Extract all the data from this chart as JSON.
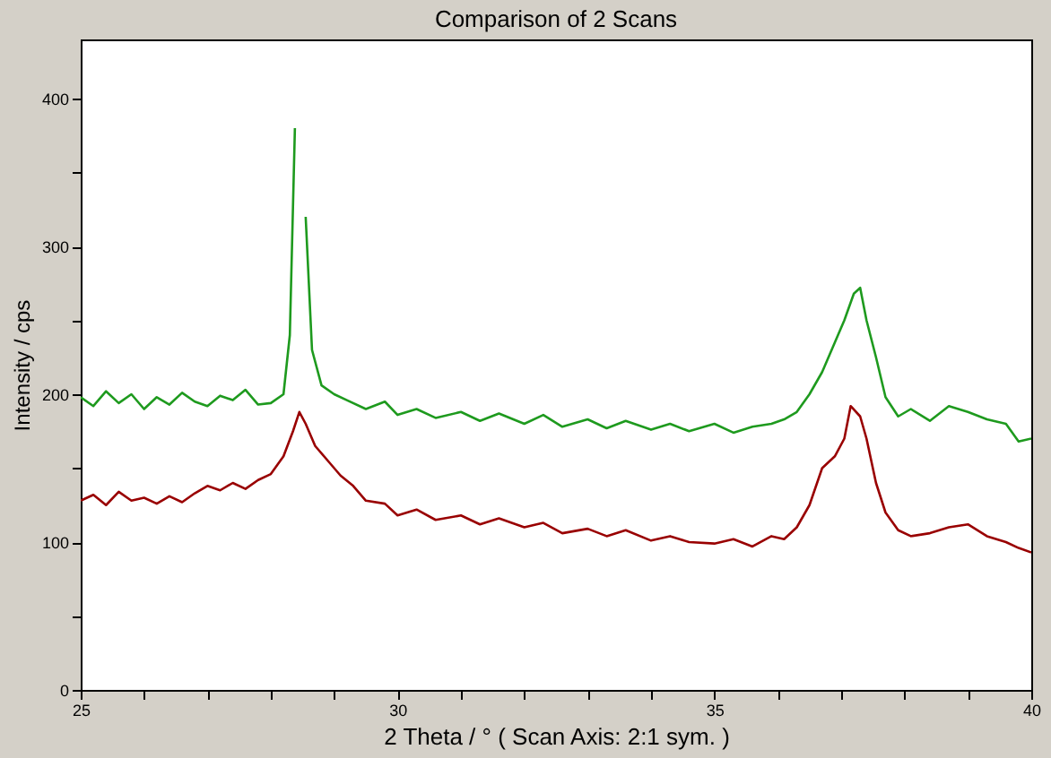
{
  "chart_data": {
    "type": "line",
    "title": "Comparison of 2 Scans",
    "xlabel": "2 Theta / °   ( Scan Axis: 2:1 sym. )",
    "ylabel": "Intensity / cps",
    "xlim": [
      25,
      40
    ],
    "ylim": [
      0,
      440
    ],
    "xticks": [
      25,
      {
        "value": 26,
        "label": null
      },
      {
        "value": 27,
        "label": null
      },
      {
        "value": 28,
        "label": null
      },
      {
        "value": 29,
        "label": null
      },
      30,
      {
        "value": 31,
        "label": null
      },
      {
        "value": 32,
        "label": null
      },
      {
        "value": 33,
        "label": null
      },
      {
        "value": 34,
        "label": null
      },
      35,
      {
        "value": 36,
        "label": null
      },
      {
        "value": 37,
        "label": null
      },
      {
        "value": 38,
        "label": null
      },
      {
        "value": 39,
        "label": null
      },
      40
    ],
    "yticks": [
      0,
      {
        "value": 50,
        "label": null
      },
      100,
      {
        "value": 150,
        "label": null
      },
      200,
      {
        "value": 250,
        "label": null
      },
      300,
      {
        "value": 350,
        "label": null
      },
      400
    ],
    "grid": false,
    "legend": false,
    "marker": "none",
    "line_style": "solid",
    "series": [
      {
        "color": "#1e9a1e",
        "x": [
          25,
          25.2,
          25.4,
          25.6,
          25.8,
          26,
          26.2,
          26.4,
          26.6,
          26.8,
          27,
          27.2,
          27.4,
          27.6,
          27.8,
          28,
          28.2,
          28.3,
          28.38,
          28.42,
          28.48,
          28.55,
          28.65,
          28.8,
          29,
          29.2,
          29.5,
          29.8,
          30,
          30.3,
          30.6,
          31,
          31.3,
          31.6,
          32,
          32.3,
          32.6,
          33,
          33.3,
          33.6,
          34,
          34.3,
          34.6,
          35,
          35.3,
          35.6,
          35.9,
          36.1,
          36.3,
          36.5,
          36.7,
          36.9,
          37.05,
          37.2,
          37.3,
          37.4,
          37.55,
          37.7,
          37.9,
          38.1,
          38.4,
          38.7,
          39,
          39.3,
          39.6,
          39.8,
          40
        ],
        "values": [
          198,
          192,
          202,
          194,
          200,
          190,
          198,
          193,
          201,
          195,
          192,
          199,
          196,
          203,
          193,
          194,
          200,
          240,
          380,
          null,
          null,
          320,
          230,
          206,
          200,
          196,
          190,
          195,
          186,
          190,
          184,
          188,
          182,
          187,
          180,
          186,
          178,
          183,
          177,
          182,
          176,
          180,
          175,
          180,
          174,
          178,
          180,
          183,
          188,
          200,
          215,
          235,
          250,
          268,
          272,
          250,
          225,
          198,
          185,
          190,
          182,
          192,
          188,
          183,
          180,
          168,
          170
        ]
      },
      {
        "color": "#990000",
        "x": [
          25,
          25.2,
          25.4,
          25.6,
          25.8,
          26,
          26.2,
          26.4,
          26.6,
          26.8,
          27,
          27.2,
          27.4,
          27.6,
          27.8,
          28,
          28.2,
          28.35,
          28.45,
          28.55,
          28.7,
          28.9,
          29.1,
          29.3,
          29.5,
          29.8,
          30,
          30.3,
          30.6,
          31,
          31.3,
          31.6,
          32,
          32.3,
          32.6,
          33,
          33.3,
          33.6,
          34,
          34.3,
          34.6,
          35,
          35.3,
          35.6,
          35.9,
          36.1,
          36.3,
          36.5,
          36.7,
          36.9,
          37.05,
          37.15,
          37.3,
          37.4,
          37.55,
          37.7,
          37.9,
          38.1,
          38.4,
          38.7,
          39,
          39.3,
          39.6,
          39.8,
          40
        ],
        "values": [
          128,
          132,
          125,
          134,
          128,
          130,
          126,
          131,
          127,
          133,
          138,
          135,
          140,
          136,
          142,
          146,
          158,
          175,
          188,
          180,
          165,
          155,
          145,
          138,
          128,
          126,
          118,
          122,
          115,
          118,
          112,
          116,
          110,
          113,
          106,
          109,
          104,
          108,
          101,
          104,
          100,
          99,
          102,
          97,
          104,
          102,
          110,
          125,
          150,
          158,
          170,
          192,
          185,
          170,
          140,
          120,
          108,
          104,
          106,
          110,
          112,
          104,
          100,
          96,
          93
        ]
      }
    ]
  }
}
